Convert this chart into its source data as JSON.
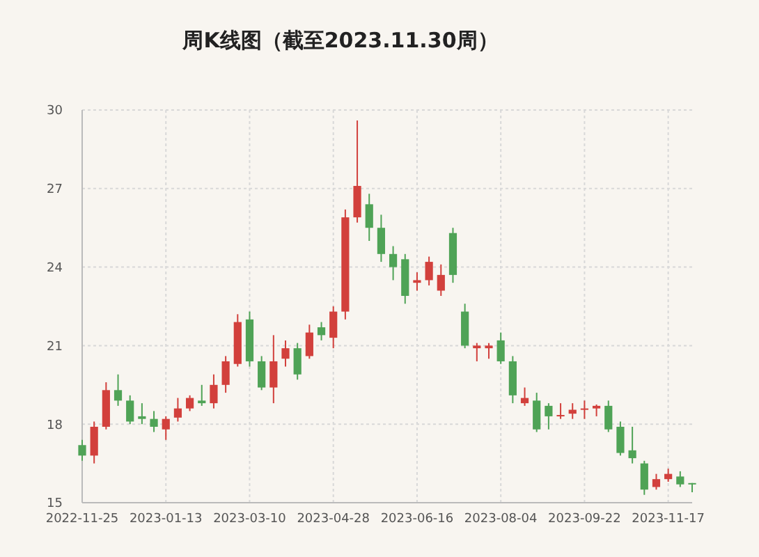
{
  "chart_data": {
    "type": "candlestick",
    "title": "周K线图（截至2023.11.30周）",
    "categories": [
      "2022-11-25",
      null,
      null,
      null,
      null,
      null,
      null,
      "2023-01-13",
      null,
      null,
      null,
      null,
      null,
      null,
      "2023-03-10",
      null,
      null,
      null,
      null,
      null,
      null,
      "2023-04-28",
      null,
      null,
      null,
      null,
      null,
      null,
      "2023-06-16",
      null,
      null,
      null,
      null,
      null,
      null,
      "2023-08-04",
      null,
      null,
      null,
      null,
      null,
      null,
      "2023-09-22",
      null,
      null,
      null,
      null,
      null,
      null,
      "2023-11-17",
      null,
      null
    ],
    "ohlc": [
      [
        17.2,
        17.4,
        16.6,
        16.8
      ],
      [
        16.8,
        18.1,
        16.5,
        17.9
      ],
      [
        17.9,
        19.6,
        17.8,
        19.3
      ],
      [
        19.3,
        19.9,
        18.7,
        18.9
      ],
      [
        18.9,
        19.1,
        18.0,
        18.1
      ],
      [
        18.3,
        18.8,
        18.0,
        18.2
      ],
      [
        18.2,
        18.5,
        17.7,
        17.9
      ],
      [
        17.8,
        18.3,
        17.4,
        18.2
      ],
      [
        18.25,
        19.0,
        18.1,
        18.6
      ],
      [
        18.6,
        19.1,
        18.5,
        19.0
      ],
      [
        18.9,
        19.5,
        18.7,
        18.8
      ],
      [
        18.8,
        19.9,
        18.6,
        19.5
      ],
      [
        19.5,
        20.6,
        19.2,
        20.4
      ],
      [
        20.3,
        22.2,
        20.2,
        21.9
      ],
      [
        22.0,
        22.3,
        20.2,
        20.4
      ],
      [
        20.4,
        20.6,
        19.3,
        19.4
      ],
      [
        19.4,
        21.4,
        18.8,
        20.4
      ],
      [
        20.5,
        21.2,
        20.2,
        20.9
      ],
      [
        20.9,
        21.1,
        19.7,
        19.9
      ],
      [
        20.6,
        21.8,
        20.5,
        21.5
      ],
      [
        21.7,
        21.9,
        21.2,
        21.4
      ],
      [
        21.3,
        22.5,
        20.9,
        22.3
      ],
      [
        22.3,
        26.2,
        22.0,
        25.9
      ],
      [
        25.9,
        29.6,
        25.7,
        27.1
      ],
      [
        26.4,
        26.8,
        25.0,
        25.5
      ],
      [
        25.5,
        26.0,
        24.2,
        24.5
      ],
      [
        24.5,
        24.8,
        23.5,
        24.0
      ],
      [
        24.3,
        24.5,
        22.6,
        22.9
      ],
      [
        23.4,
        23.8,
        23.1,
        23.5
      ],
      [
        23.5,
        24.4,
        23.3,
        24.2
      ],
      [
        23.1,
        24.1,
        22.9,
        23.7
      ],
      [
        25.3,
        25.5,
        23.4,
        23.7
      ],
      [
        22.3,
        22.6,
        20.9,
        21.0
      ],
      [
        20.9,
        21.1,
        20.4,
        21.0
      ],
      [
        20.9,
        21.1,
        20.5,
        21.0
      ],
      [
        21.2,
        21.5,
        20.3,
        20.4
      ],
      [
        20.4,
        20.6,
        18.8,
        19.1
      ],
      [
        18.8,
        19.4,
        18.7,
        19.0
      ],
      [
        18.9,
        19.2,
        17.7,
        17.8
      ],
      [
        18.7,
        18.8,
        17.8,
        18.3
      ],
      [
        18.3,
        18.8,
        18.2,
        18.35
      ],
      [
        18.4,
        18.8,
        18.2,
        18.55
      ],
      [
        18.55,
        18.9,
        18.2,
        18.6
      ],
      [
        18.6,
        18.75,
        18.3,
        18.7
      ],
      [
        18.7,
        18.9,
        17.7,
        17.8
      ],
      [
        17.9,
        18.1,
        16.8,
        16.9
      ],
      [
        17.0,
        17.9,
        16.5,
        16.7
      ],
      [
        16.5,
        16.6,
        15.3,
        15.5
      ],
      [
        15.6,
        16.1,
        15.5,
        15.9
      ],
      [
        15.9,
        16.3,
        15.8,
        16.1
      ],
      [
        16.0,
        16.2,
        15.6,
        15.7
      ],
      [
        15.75,
        15.75,
        15.4,
        15.7
      ]
    ],
    "colors": [
      "#4fa356",
      "#d2403c",
      "#d2403c",
      "#4fa356",
      "#4fa356",
      "#4fa356",
      "#4fa356",
      "#d2403c",
      "#d2403c",
      "#d2403c",
      "#4fa356",
      "#d2403c",
      "#d2403c",
      "#d2403c",
      "#4fa356",
      "#4fa356",
      "#d2403c",
      "#d2403c",
      "#4fa356",
      "#d2403c",
      "#4fa356",
      "#d2403c",
      "#d2403c",
      "#d2403c",
      "#4fa356",
      "#4fa356",
      "#4fa356",
      "#4fa356",
      "#d2403c",
      "#d2403c",
      "#d2403c",
      "#4fa356",
      "#4fa356",
      "#d2403c",
      "#d2403c",
      "#4fa356",
      "#4fa356",
      "#d2403c",
      "#4fa356",
      "#4fa356",
      "#d2403c",
      "#d2403c",
      "#d2403c",
      "#d2403c",
      "#4fa356",
      "#4fa356",
      "#4fa356",
      "#4fa356",
      "#d2403c",
      "#d2403c",
      "#4fa356",
      "#4fa356"
    ],
    "ylim": [
      15,
      30
    ],
    "yticks": [
      15,
      18,
      21,
      24,
      27,
      30
    ],
    "grid": true
  }
}
